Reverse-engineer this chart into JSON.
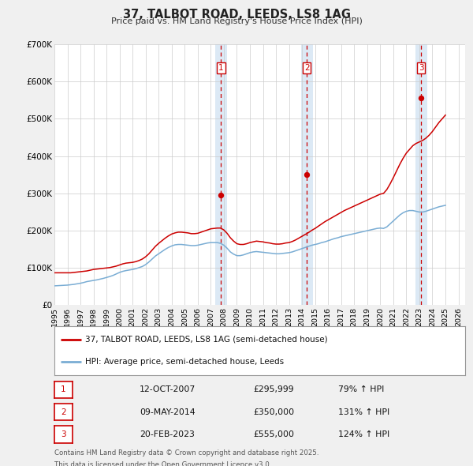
{
  "title": "37, TALBOT ROAD, LEEDS, LS8 1AG",
  "subtitle": "Price paid vs. HM Land Registry's House Price Index (HPI)",
  "xlim": [
    1995.0,
    2026.5
  ],
  "ylim": [
    0,
    700000
  ],
  "yticks": [
    0,
    100000,
    200000,
    300000,
    400000,
    500000,
    600000,
    700000
  ],
  "ytick_labels": [
    "£0",
    "£100K",
    "£200K",
    "£300K",
    "£400K",
    "£500K",
    "£600K",
    "£700K"
  ],
  "bg_color": "#f0f0f0",
  "plot_bg_color": "#ffffff",
  "grid_color": "#cccccc",
  "red_color": "#cc0000",
  "blue_color": "#7aadd4",
  "shaded_region_color": "#dce9f5",
  "transactions": [
    {
      "label": "1",
      "date_x": 2007.78,
      "price": 295999,
      "hpi_pct": "79%",
      "date_str": "12-OCT-2007"
    },
    {
      "label": "2",
      "date_x": 2014.36,
      "price": 350000,
      "hpi_pct": "131%",
      "date_str": "09-MAY-2014"
    },
    {
      "label": "3",
      "date_x": 2023.13,
      "price": 555000,
      "hpi_pct": "124%",
      "date_str": "20-FEB-2023"
    }
  ],
  "legend_line1": "37, TALBOT ROAD, LEEDS, LS8 1AG (semi-detached house)",
  "legend_line2": "HPI: Average price, semi-detached house, Leeds",
  "footer_line1": "Contains HM Land Registry data © Crown copyright and database right 2025.",
  "footer_line2": "This data is licensed under the Open Government Licence v3.0.",
  "hpi_data_x": [
    1995.0,
    1995.25,
    1995.5,
    1995.75,
    1996.0,
    1996.25,
    1996.5,
    1996.75,
    1997.0,
    1997.25,
    1997.5,
    1997.75,
    1998.0,
    1998.25,
    1998.5,
    1998.75,
    1999.0,
    1999.25,
    1999.5,
    1999.75,
    2000.0,
    2000.25,
    2000.5,
    2000.75,
    2001.0,
    2001.25,
    2001.5,
    2001.75,
    2002.0,
    2002.25,
    2002.5,
    2002.75,
    2003.0,
    2003.25,
    2003.5,
    2003.75,
    2004.0,
    2004.25,
    2004.5,
    2004.75,
    2005.0,
    2005.25,
    2005.5,
    2005.75,
    2006.0,
    2006.25,
    2006.5,
    2006.75,
    2007.0,
    2007.25,
    2007.5,
    2007.75,
    2008.0,
    2008.25,
    2008.5,
    2008.75,
    2009.0,
    2009.25,
    2009.5,
    2009.75,
    2010.0,
    2010.25,
    2010.5,
    2010.75,
    2011.0,
    2011.25,
    2011.5,
    2011.75,
    2012.0,
    2012.25,
    2012.5,
    2012.75,
    2013.0,
    2013.25,
    2013.5,
    2013.75,
    2014.0,
    2014.25,
    2014.5,
    2014.75,
    2015.0,
    2015.25,
    2015.5,
    2015.75,
    2016.0,
    2016.25,
    2016.5,
    2016.75,
    2017.0,
    2017.25,
    2017.5,
    2017.75,
    2018.0,
    2018.25,
    2018.5,
    2018.75,
    2019.0,
    2019.25,
    2019.5,
    2019.75,
    2020.0,
    2020.25,
    2020.5,
    2020.75,
    2021.0,
    2021.25,
    2021.5,
    2021.75,
    2022.0,
    2022.25,
    2022.5,
    2022.75,
    2023.0,
    2023.25,
    2023.5,
    2023.75,
    2024.0,
    2024.25,
    2024.5,
    2024.75,
    2025.0
  ],
  "hpi_data_y": [
    52000,
    52500,
    53000,
    53500,
    54000,
    55000,
    56000,
    57500,
    59000,
    61000,
    63500,
    65000,
    66500,
    68000,
    70000,
    72000,
    74500,
    77000,
    80000,
    84000,
    88000,
    91000,
    93000,
    94500,
    96000,
    98000,
    101000,
    104000,
    109000,
    116000,
    124000,
    132000,
    138000,
    144000,
    150000,
    155000,
    159000,
    162000,
    163000,
    163000,
    162000,
    161000,
    160000,
    160000,
    161000,
    163000,
    165000,
    167000,
    168000,
    168000,
    168000,
    166000,
    161000,
    153000,
    143000,
    137000,
    133000,
    133000,
    135000,
    138000,
    141000,
    143000,
    144000,
    143000,
    142000,
    141000,
    140000,
    139000,
    138000,
    138000,
    139000,
    140000,
    141000,
    143000,
    146000,
    149000,
    152000,
    155000,
    158000,
    161000,
    163000,
    165000,
    168000,
    170000,
    173000,
    176000,
    179000,
    181000,
    184000,
    186000,
    188000,
    190000,
    192000,
    194000,
    196000,
    198000,
    200000,
    202000,
    204000,
    206000,
    207000,
    206000,
    210000,
    218000,
    226000,
    234000,
    242000,
    248000,
    252000,
    254000,
    254000,
    252000,
    250000,
    250000,
    252000,
    255000,
    258000,
    261000,
    264000,
    266000,
    268000
  ],
  "property_data_x": [
    1995.0,
    1995.25,
    1995.5,
    1995.75,
    1996.0,
    1996.25,
    1996.5,
    1996.75,
    1997.0,
    1997.25,
    1997.5,
    1997.75,
    1998.0,
    1998.25,
    1998.5,
    1998.75,
    1999.0,
    1999.25,
    1999.5,
    1999.75,
    2000.0,
    2000.25,
    2000.5,
    2000.75,
    2001.0,
    2001.25,
    2001.5,
    2001.75,
    2002.0,
    2002.25,
    2002.5,
    2002.75,
    2003.0,
    2003.25,
    2003.5,
    2003.75,
    2004.0,
    2004.25,
    2004.5,
    2004.75,
    2005.0,
    2005.25,
    2005.5,
    2005.75,
    2006.0,
    2006.25,
    2006.5,
    2006.75,
    2007.0,
    2007.25,
    2007.5,
    2007.75,
    2008.0,
    2008.25,
    2008.5,
    2008.75,
    2009.0,
    2009.25,
    2009.5,
    2009.75,
    2010.0,
    2010.25,
    2010.5,
    2010.75,
    2011.0,
    2011.25,
    2011.5,
    2011.75,
    2012.0,
    2012.25,
    2012.5,
    2012.75,
    2013.0,
    2013.25,
    2013.5,
    2013.75,
    2014.0,
    2014.25,
    2014.5,
    2014.75,
    2015.0,
    2015.25,
    2015.5,
    2015.75,
    2016.0,
    2016.25,
    2016.5,
    2016.75,
    2017.0,
    2017.25,
    2017.5,
    2017.75,
    2018.0,
    2018.25,
    2018.5,
    2018.75,
    2019.0,
    2019.25,
    2019.5,
    2019.75,
    2020.0,
    2020.25,
    2020.5,
    2020.75,
    2021.0,
    2021.25,
    2021.5,
    2021.75,
    2022.0,
    2022.25,
    2022.5,
    2022.75,
    2023.0,
    2023.25,
    2023.5,
    2023.75,
    2024.0,
    2024.25,
    2024.5,
    2024.75,
    2025.0
  ],
  "property_data_y": [
    87000,
    87000,
    87000,
    87000,
    87000,
    87000,
    88000,
    89000,
    90000,
    91000,
    92000,
    94000,
    96000,
    97000,
    98000,
    99000,
    100000,
    101000,
    103000,
    105000,
    108000,
    111000,
    113000,
    114000,
    115000,
    117000,
    120000,
    124000,
    130000,
    138000,
    148000,
    158000,
    166000,
    173000,
    180000,
    186000,
    191000,
    194000,
    196000,
    196000,
    195000,
    194000,
    192000,
    192000,
    193000,
    196000,
    199000,
    202000,
    205000,
    206000,
    207000,
    207000,
    202000,
    193000,
    181000,
    172000,
    165000,
    163000,
    163000,
    165000,
    168000,
    170000,
    172000,
    171000,
    170000,
    168000,
    167000,
    165000,
    164000,
    164000,
    165000,
    167000,
    168000,
    171000,
    175000,
    180000,
    185000,
    190000,
    195000,
    201000,
    206000,
    212000,
    218000,
    224000,
    229000,
    234000,
    239000,
    244000,
    249000,
    254000,
    258000,
    262000,
    266000,
    270000,
    274000,
    278000,
    282000,
    286000,
    290000,
    294000,
    298000,
    300000,
    310000,
    325000,
    342000,
    360000,
    378000,
    394000,
    408000,
    418000,
    428000,
    434000,
    438000,
    442000,
    448000,
    456000,
    466000,
    478000,
    490000,
    500000,
    510000
  ],
  "xticks": [
    1995,
    1996,
    1997,
    1998,
    1999,
    2000,
    2001,
    2002,
    2003,
    2004,
    2005,
    2006,
    2007,
    2008,
    2009,
    2010,
    2011,
    2012,
    2013,
    2014,
    2015,
    2016,
    2017,
    2018,
    2019,
    2020,
    2021,
    2022,
    2023,
    2024,
    2025,
    2026
  ]
}
